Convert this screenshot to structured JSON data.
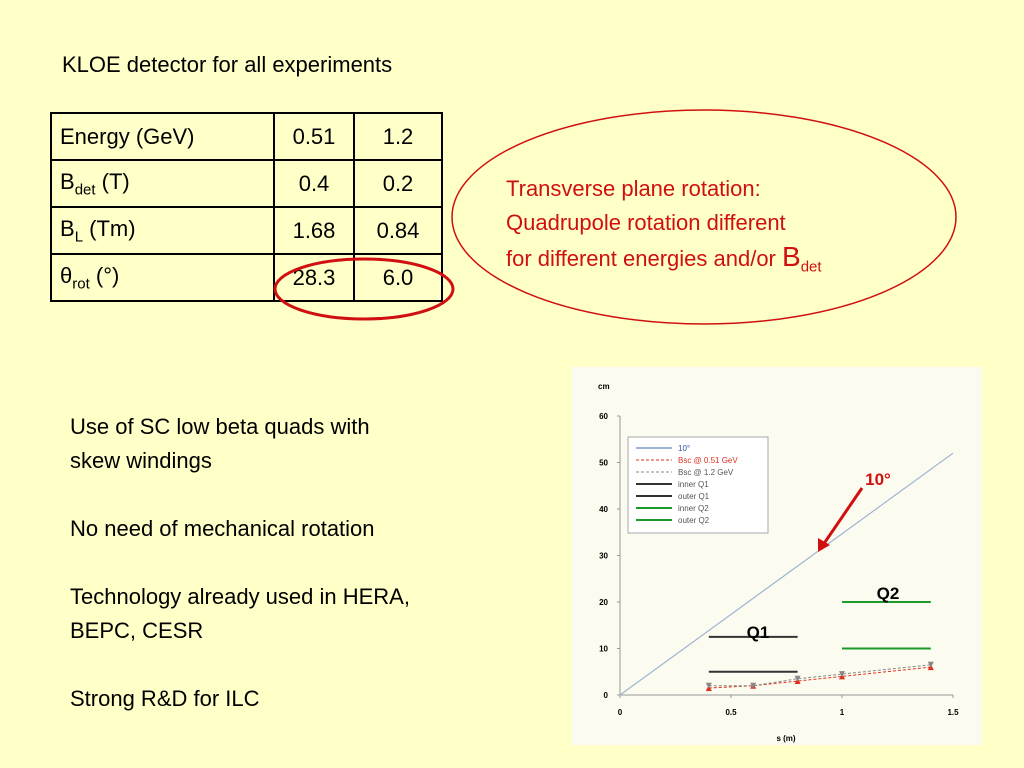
{
  "title": "KLOE detector for all experiments",
  "table": {
    "rows": [
      {
        "label": "Energy (GeV)",
        "values": [
          "0.51",
          "1.2"
        ]
      },
      {
        "symbol": "B",
        "sub": "det",
        "unit": "(T)",
        "values": [
          "0.4",
          "0.2"
        ]
      },
      {
        "symbol": "B",
        "sub": "L",
        "unit": "(Tm)",
        "values": [
          "1.68",
          "0.84"
        ]
      },
      {
        "symbol": "θ",
        "sub": "rot",
        "unit": "(°)",
        "values": [
          "28.3",
          "6.0"
        ]
      }
    ]
  },
  "callout": {
    "lines": [
      "Transverse plane rotation:",
      "Quadrupole rotation different",
      "for different energies and/or"
    ],
    "symbol": "B",
    "sub": "det"
  },
  "notes": [
    [
      "Use of SC low beta quads with",
      "skew windings"
    ],
    [
      "No need of mechanical rotation"
    ],
    [
      "Technology already used in HERA,",
      "BEPC, CESR"
    ],
    [
      "Strong R&D for ILC"
    ]
  ],
  "plot": {
    "type": "line",
    "xlabel": "s (m)",
    "ylabel": "cm",
    "xlim": [
      0,
      1.5
    ],
    "ylim": [
      0,
      60
    ],
    "xticks": [
      0,
      0.5,
      1,
      1.5
    ],
    "yticks": [
      0,
      10,
      20,
      30,
      40,
      50,
      60
    ],
    "series": [
      {
        "name": "10°",
        "color": "#9fb3d6",
        "style": "line",
        "x": [
          0,
          1.5
        ],
        "values": [
          0,
          52
        ]
      },
      {
        "name": "Bsc @ 0.51 GeV",
        "color": "#e03020",
        "style": "marker-up",
        "x": [
          0.4,
          0.6,
          0.8,
          1,
          1.4
        ],
        "values": [
          1.5,
          2,
          3,
          4,
          6
        ]
      },
      {
        "name": "Bsc @ 1.2 GeV",
        "color": "#888888",
        "style": "marker-down",
        "x": [
          0.4,
          0.6,
          0.8,
          1,
          1.4
        ],
        "values": [
          2,
          2,
          3.5,
          4.5,
          6.5
        ]
      },
      {
        "name": "inner Q1",
        "color": "#333333",
        "style": "line",
        "x": [
          0.4,
          0.8
        ],
        "values": [
          5,
          5
        ]
      },
      {
        "name": "outer Q1",
        "color": "#333333",
        "style": "line",
        "x": [
          0.4,
          0.8
        ],
        "values": [
          12.5,
          12.5
        ]
      },
      {
        "name": "inner Q2",
        "color": "#1a9a2a",
        "style": "line",
        "x": [
          1,
          1.4
        ],
        "values": [
          10,
          10
        ]
      },
      {
        "name": "outer Q2",
        "color": "#1a9a2a",
        "style": "line",
        "x": [
          1,
          1.4
        ],
        "values": [
          20,
          20
        ]
      }
    ],
    "annotations": [
      "10°",
      "Q1",
      "Q2"
    ]
  }
}
